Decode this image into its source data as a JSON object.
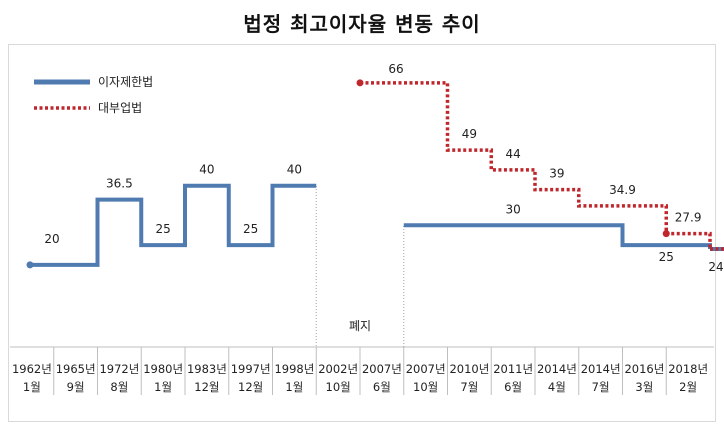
{
  "chart_data": {
    "type": "line",
    "title": "법정 최고이자율 변동 추이",
    "categories": [
      [
        "1962년",
        "1월"
      ],
      [
        "1965년",
        "9월"
      ],
      [
        "1972년",
        "8월"
      ],
      [
        "1980년",
        "1월"
      ],
      [
        "1983년",
        "12월"
      ],
      [
        "1997년",
        "12월"
      ],
      [
        "1998년",
        "1월"
      ],
      [
        "2002년",
        "10월"
      ],
      [
        "2007년",
        "6월"
      ],
      [
        "2007년",
        "10월"
      ],
      [
        "2010년",
        "7월"
      ],
      [
        "2011년",
        "6월"
      ],
      [
        "2014년",
        "4월"
      ],
      [
        "2014년",
        "7월"
      ],
      [
        "2016년",
        "3월"
      ],
      [
        "2018년",
        "2월"
      ]
    ],
    "legend_position": "top-left",
    "series": [
      {
        "name": "이자제한법",
        "color": "#4f7bb0",
        "style": "solid",
        "points": [
          {
            "x": "1962년 1월",
            "y": 20,
            "label": "20"
          },
          {
            "x": "1965년 9월",
            "y": 36.5,
            "label": "36.5"
          },
          {
            "x": "1972년 8월",
            "y": 25,
            "label": "25"
          },
          {
            "x": "1980년 1월",
            "y": 40,
            "label": "40"
          },
          {
            "x": "1983년 12월",
            "y": 25,
            "label": "25"
          },
          {
            "x": "1997년 12월",
            "y": 40,
            "label": "40"
          },
          {
            "x": "1998년 1월",
            "y": 40,
            "label": ""
          },
          {
            "x": "2007년 6월",
            "y": 30,
            "label": "30"
          },
          {
            "x": "2014년 7월",
            "y": 25,
            "label": "25"
          },
          {
            "x": "2018년 2월",
            "y": 24,
            "label": "24"
          }
        ]
      },
      {
        "name": "대부업법",
        "color": "#c0272d",
        "style": "dotted",
        "points": [
          {
            "x": "2002년 10월",
            "y": 66,
            "label": "66"
          },
          {
            "x": "2007년 10월",
            "y": 49,
            "label": "49"
          },
          {
            "x": "2010년 7월",
            "y": 44,
            "label": "44"
          },
          {
            "x": "2011년 6월",
            "y": 39,
            "label": "39"
          },
          {
            "x": "2014년 4월",
            "y": 34.9,
            "label": "34.9"
          },
          {
            "x": "2016년 3월",
            "y": 27.9,
            "label": "27.9"
          },
          {
            "x": "2018년 2월",
            "y": 24,
            "label": ""
          }
        ]
      }
    ],
    "annotations": [
      {
        "text": "폐지",
        "x_from": "1998년 1월",
        "x_to": "2007년 6월"
      }
    ],
    "ylim": [
      0,
      70
    ],
    "grid": false
  }
}
